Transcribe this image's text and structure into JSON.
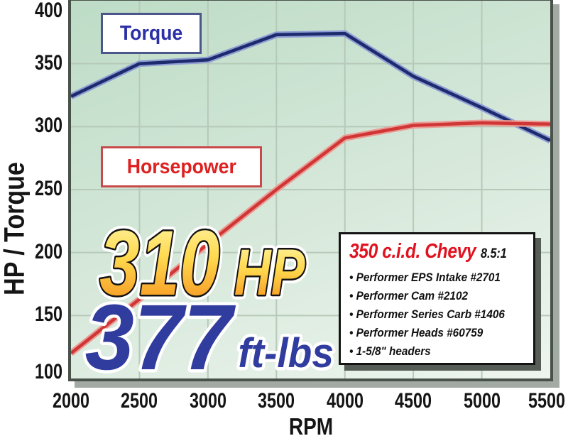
{
  "chart_data": {
    "type": "line",
    "title": "",
    "xlabel": "RPM",
    "ylabel": "HP / Torque",
    "xlim": [
      2000,
      5500
    ],
    "ylim": [
      100,
      400
    ],
    "x_ticks": [
      2000,
      2500,
      3000,
      3500,
      4000,
      4500,
      5000,
      5500
    ],
    "y_ticks": [
      400,
      350,
      300,
      250,
      200,
      150,
      100
    ],
    "grid": true,
    "x": [
      2000,
      2500,
      3000,
      3500,
      4000,
      4500,
      5000,
      5500
    ],
    "series": [
      {
        "name": "Torque",
        "color": "#1d2a6d",
        "halo_color": "#8e9dd3",
        "values": [
          324,
          350,
          353,
          373,
          374,
          340,
          315,
          289
        ]
      },
      {
        "name": "Horsepower",
        "color": "#d03636",
        "halo_color": "#eb9b94",
        "values": [
          120,
          163,
          207,
          250,
          291,
          301,
          303,
          302
        ]
      }
    ],
    "legend": [
      {
        "label": "Torque",
        "position": "upper-left-box"
      },
      {
        "label": "Horsepower",
        "position": "mid-left-box"
      }
    ],
    "annotations": [
      "310 HP",
      "377 ft-lbs"
    ]
  },
  "headline": {
    "hp_value": "310",
    "hp_unit": "HP",
    "torque_value": "377",
    "torque_unit": "ft-lbs"
  },
  "spec_box": {
    "title": "350 c.i.d. Chevy",
    "compression_ratio": "8.5:1",
    "items": [
      "Performer EPS Intake #2701",
      "Performer Cam #2102",
      "Performer Series Carb #1406",
      "Performer Heads #60759",
      "1-5/8\" headers"
    ]
  },
  "colors": {
    "torque_line": "#1d2a6d",
    "horsepower_line": "#d03636",
    "headline_gold_top": "#fff5a6",
    "headline_gold_mid": "#ffd94e",
    "headline_gold_bottom": "#f5901d",
    "headline_blue": "#303c9e",
    "spec_title_red": "#e0121f",
    "plot_bg_top": "#bddcc6",
    "plot_bg_bottom": "#eef5ee",
    "gridline": "#b7c9b9"
  }
}
